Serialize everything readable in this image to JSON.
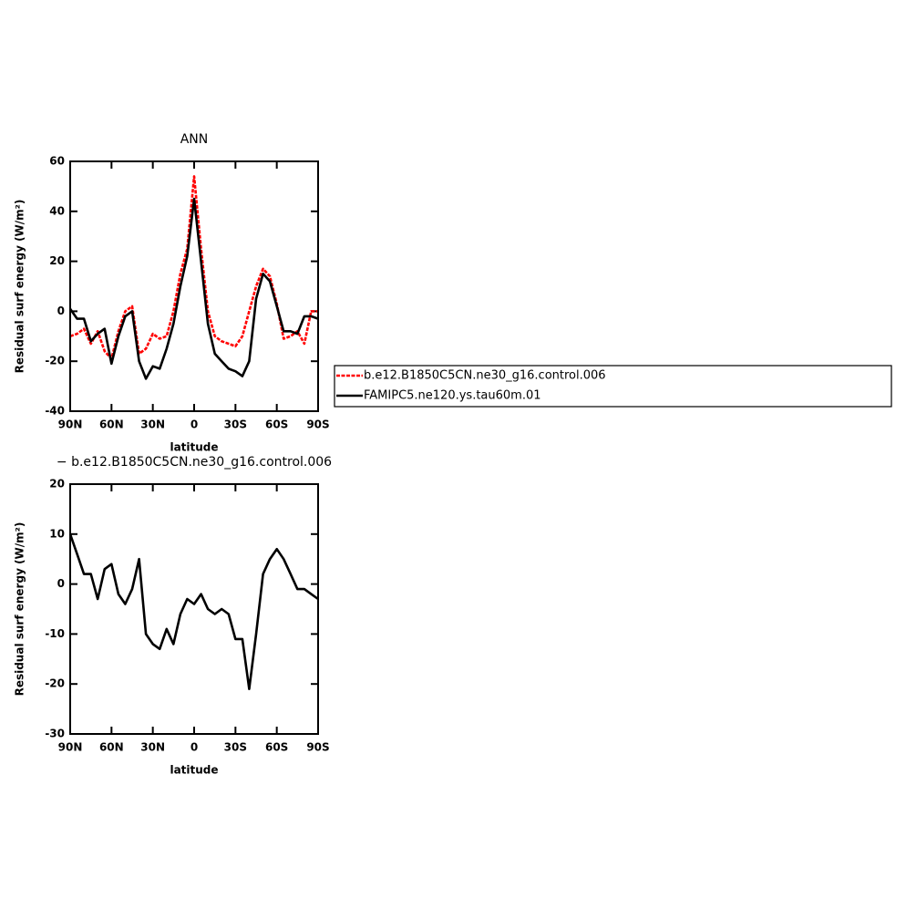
{
  "chart_data": [
    {
      "type": "line",
      "title": "ANN",
      "xlabel": "latitude",
      "ylabel": "Residual surf energy (W/m²)",
      "x": [
        90,
        85,
        80,
        75,
        70,
        65,
        60,
        55,
        50,
        45,
        40,
        35,
        30,
        25,
        20,
        15,
        10,
        5,
        0,
        -5,
        -10,
        -15,
        -20,
        -25,
        -30,
        -35,
        -40,
        -45,
        -50,
        -55,
        -60,
        -65,
        -70,
        -75,
        -80,
        -85,
        -90
      ],
      "xlim": [
        90,
        -90
      ],
      "xticks": [
        {
          "value": 90,
          "label": "90N"
        },
        {
          "value": 60,
          "label": "60N"
        },
        {
          "value": 30,
          "label": "30N"
        },
        0,
        {
          "value": -30,
          "label": "30S"
        },
        {
          "value": -60,
          "label": "60S"
        },
        {
          "value": -90,
          "label": "90S"
        }
      ],
      "ylim": [
        -40,
        60
      ],
      "yticks": [
        -40,
        -20,
        0,
        20,
        40,
        60
      ],
      "legend": "outside-right",
      "series": [
        {
          "name": "b.e12.B1850C5CN.ne30_g16.control.006",
          "color": "#ff0000",
          "dashed": true,
          "values": [
            -10,
            -9,
            -7,
            -13,
            -8,
            -16,
            -19,
            -8,
            0,
            2,
            -17,
            -15,
            -9,
            -11,
            -10,
            0,
            15,
            25,
            54,
            25,
            0,
            -10,
            -12,
            -13,
            -14,
            -10,
            0,
            10,
            17,
            14,
            3,
            -11,
            -10,
            -8,
            -13,
            0,
            0
          ]
        },
        {
          "name": "FAMIPC5.ne120.ys.tau60m.01",
          "color": "#000000",
          "values": [
            1,
            -3,
            -3,
            -12,
            -9,
            -7,
            -21,
            -10,
            -2,
            0,
            -20,
            -27,
            -22,
            -23,
            -15,
            -5,
            10,
            22,
            45,
            20,
            -5,
            -17,
            -20,
            -23,
            -24,
            -26,
            -20,
            5,
            15,
            12,
            2,
            -8,
            -8,
            -9,
            -2,
            -2,
            -3
          ]
        }
      ]
    },
    {
      "type": "line",
      "title": "− b.e12.B1850C5CN.ne30_g16.control.006",
      "xlabel": "latitude",
      "ylabel": "Residual surf energy (W/m²)",
      "x": [
        90,
        85,
        80,
        75,
        70,
        65,
        60,
        55,
        50,
        45,
        40,
        35,
        30,
        25,
        20,
        15,
        10,
        5,
        0,
        -5,
        -10,
        -15,
        -20,
        -25,
        -30,
        -35,
        -40,
        -45,
        -50,
        -55,
        -60,
        -65,
        -70,
        -75,
        -80,
        -85,
        -90
      ],
      "xlim": [
        90,
        -90
      ],
      "xticks": [
        {
          "value": 90,
          "label": "90N"
        },
        {
          "value": 60,
          "label": "60N"
        },
        {
          "value": 30,
          "label": "30N"
        },
        0,
        {
          "value": -30,
          "label": "30S"
        },
        {
          "value": -60,
          "label": "60S"
        },
        {
          "value": -90,
          "label": "90S"
        }
      ],
      "ylim": [
        -30,
        20
      ],
      "yticks": [
        -30,
        -20,
        -10,
        0,
        10,
        20
      ],
      "series": [
        {
          "color": "#000000",
          "values": [
            10,
            6,
            2,
            2,
            -3,
            3,
            4,
            -2,
            -4,
            -1,
            5,
            -10,
            -12,
            -13,
            -9,
            -12,
            -6,
            -3,
            -4,
            -2,
            -5,
            -6,
            -5,
            -6,
            -11,
            -11,
            -21,
            -10,
            2,
            5,
            7,
            5,
            2,
            -1,
            -1,
            -2,
            -3
          ]
        }
      ]
    }
  ]
}
